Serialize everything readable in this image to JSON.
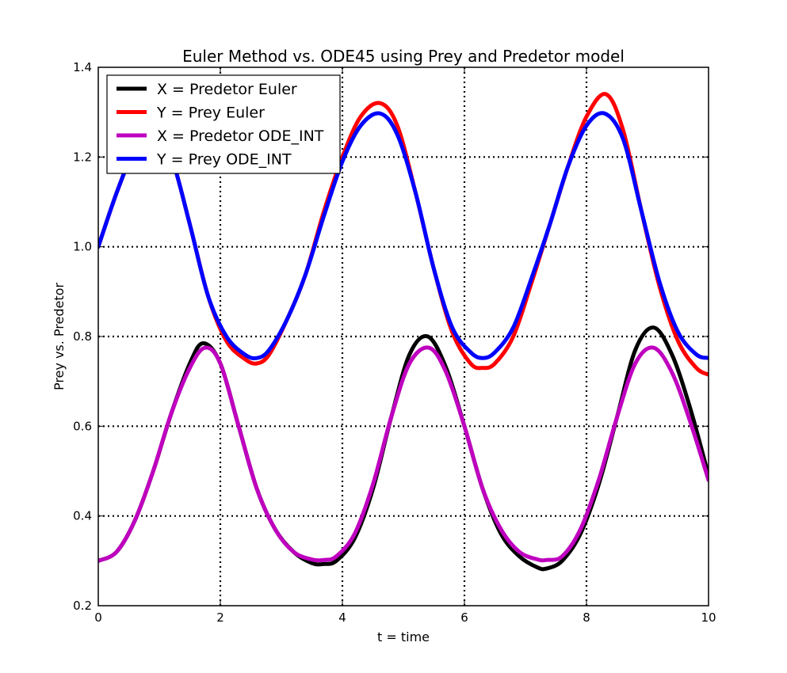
{
  "chart_data": {
    "type": "line",
    "title": "Euler Method vs. ODE45 using Prey and Predetor model",
    "xlabel": "t = time",
    "ylabel": "Prey vs. Predetor",
    "xlim": [
      0,
      10
    ],
    "ylim": [
      0.2,
      1.4
    ],
    "xticks": [
      0,
      2,
      4,
      6,
      8,
      10
    ],
    "yticks": [
      0.2,
      0.4,
      0.6,
      0.8,
      1.0,
      1.2,
      1.4
    ],
    "x_tick_labels": [
      "0",
      "2",
      "4",
      "6",
      "8",
      "10"
    ],
    "y_tick_labels": [
      "0.2",
      "0.4",
      "0.6",
      "0.8",
      "1.0",
      "1.2",
      "1.4"
    ],
    "grid": true,
    "grid_style": "dotted",
    "legend_position": "upper-left",
    "series": [
      {
        "name": "X = Predetor Euler",
        "color": "#000000",
        "x": [
          0,
          0.3,
          0.6,
          0.9,
          1.2,
          1.5,
          1.72,
          2.0,
          2.3,
          2.6,
          2.9,
          3.2,
          3.5,
          3.7,
          3.9,
          4.2,
          4.5,
          4.8,
          5.1,
          5.4,
          5.7,
          6.0,
          6.3,
          6.6,
          6.9,
          7.2,
          7.35,
          7.6,
          7.9,
          8.2,
          8.5,
          8.8,
          9.1,
          9.4,
          9.7,
          10.0
        ],
        "y": [
          0.3,
          0.32,
          0.39,
          0.5,
          0.63,
          0.74,
          0.785,
          0.74,
          0.6,
          0.46,
          0.37,
          0.32,
          0.295,
          0.293,
          0.3,
          0.35,
          0.46,
          0.62,
          0.76,
          0.8,
          0.73,
          0.6,
          0.46,
          0.36,
          0.31,
          0.285,
          0.283,
          0.3,
          0.36,
          0.47,
          0.62,
          0.77,
          0.82,
          0.76,
          0.64,
          0.49
        ]
      },
      {
        "name": "Y = Prey Euler",
        "color": "#ff0000",
        "x": [
          0,
          0.3,
          0.6,
          0.9,
          1.2,
          1.5,
          1.8,
          2.1,
          2.4,
          2.6,
          2.8,
          3.1,
          3.4,
          3.7,
          4.0,
          4.3,
          4.62,
          4.9,
          5.2,
          5.5,
          5.8,
          6.1,
          6.3,
          6.5,
          6.8,
          7.1,
          7.4,
          7.7,
          8.0,
          8.32,
          8.6,
          8.9,
          9.2,
          9.5,
          9.8,
          10.0
        ],
        "y": [
          1.0,
          1.12,
          1.22,
          1.28,
          1.2,
          1.05,
          0.89,
          0.79,
          0.75,
          0.74,
          0.76,
          0.84,
          0.94,
          1.08,
          1.2,
          1.29,
          1.32,
          1.27,
          1.12,
          0.95,
          0.81,
          0.74,
          0.73,
          0.74,
          0.8,
          0.92,
          1.05,
          1.18,
          1.29,
          1.34,
          1.26,
          1.08,
          0.91,
          0.79,
          0.73,
          0.715
        ]
      },
      {
        "name": "X = Predetor ODE_INT",
        "color": "#bf00bf",
        "x": [
          0,
          0.3,
          0.6,
          0.9,
          1.2,
          1.5,
          1.75,
          2.0,
          2.3,
          2.6,
          2.9,
          3.2,
          3.5,
          3.7,
          3.9,
          4.2,
          4.5,
          4.8,
          5.1,
          5.42,
          5.7,
          6.0,
          6.3,
          6.6,
          6.9,
          7.2,
          7.35,
          7.6,
          7.9,
          8.2,
          8.5,
          8.8,
          9.1,
          9.4,
          9.7,
          10.0
        ],
        "y": [
          0.3,
          0.32,
          0.39,
          0.5,
          0.63,
          0.73,
          0.775,
          0.74,
          0.6,
          0.46,
          0.37,
          0.32,
          0.303,
          0.302,
          0.31,
          0.36,
          0.47,
          0.62,
          0.74,
          0.775,
          0.72,
          0.6,
          0.46,
          0.37,
          0.32,
          0.303,
          0.302,
          0.31,
          0.37,
          0.48,
          0.62,
          0.74,
          0.775,
          0.72,
          0.61,
          0.48
        ]
      },
      {
        "name": "Y = Prey ODE_INT",
        "color": "#0000ff",
        "x": [
          0,
          0.3,
          0.6,
          0.9,
          1.2,
          1.5,
          1.8,
          2.1,
          2.4,
          2.6,
          2.8,
          3.1,
          3.4,
          3.7,
          4.0,
          4.3,
          4.62,
          4.9,
          5.2,
          5.5,
          5.8,
          6.1,
          6.3,
          6.5,
          6.8,
          7.1,
          7.4,
          7.7,
          8.0,
          8.3,
          8.6,
          8.9,
          9.2,
          9.5,
          9.8,
          10.0
        ],
        "y": [
          1.0,
          1.12,
          1.22,
          1.28,
          1.2,
          1.05,
          0.89,
          0.8,
          0.76,
          0.752,
          0.77,
          0.84,
          0.94,
          1.07,
          1.19,
          1.27,
          1.297,
          1.25,
          1.12,
          0.95,
          0.82,
          0.765,
          0.752,
          0.765,
          0.82,
          0.93,
          1.05,
          1.18,
          1.27,
          1.297,
          1.24,
          1.08,
          0.92,
          0.81,
          0.76,
          0.752
        ]
      }
    ]
  }
}
